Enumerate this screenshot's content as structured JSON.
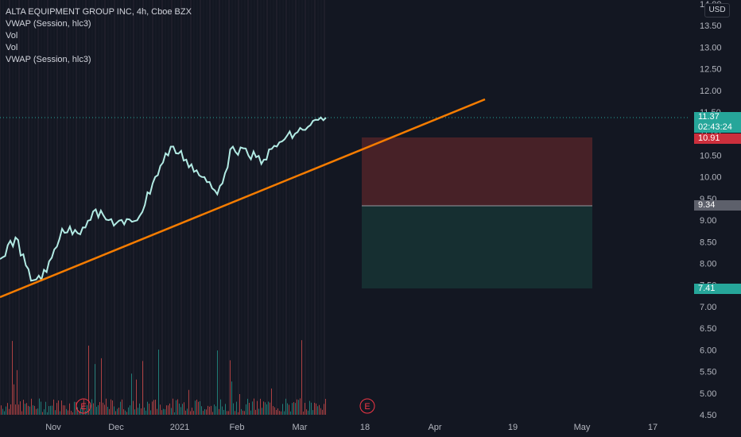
{
  "legend": {
    "title": "ALTA EQUIPMENT GROUP INC, 4h, Cboe BZX",
    "items": [
      "VWAP (Session, hlc3)",
      "Vol",
      "Vol",
      "VWAP (Session, hlc3)"
    ]
  },
  "currency": "USD",
  "price_axis": {
    "ticks": [
      "14.00",
      "13.50",
      "13.00",
      "12.50",
      "12.00",
      "11.50",
      "11.00",
      "10.50",
      "10.00",
      "9.50",
      "9.00",
      "8.50",
      "8.00",
      "7.50",
      "7.00",
      "6.50",
      "6.00",
      "5.50",
      "5.00",
      "4.50"
    ]
  },
  "time_axis": {
    "ticks": [
      "Nov",
      "Dec",
      "2021",
      "Feb",
      "Mar",
      "18",
      "Apr",
      "19",
      "May",
      "17"
    ]
  },
  "events": [
    {
      "label": "E"
    },
    {
      "label": "E"
    }
  ],
  "price_tags": {
    "last_price": "11.37",
    "countdown": "02:43:24",
    "stop": "10.91",
    "entry": "9.34",
    "target": "7.41"
  },
  "colors": {
    "background": "#131722",
    "price_line": "#b2ebe4",
    "trendline": "#f57c00",
    "stop_zone": "#4a2228",
    "target_zone": "#163033",
    "last_price_tag": "#26a69a",
    "stop_tag": "#cc2f3c",
    "entry_tag": "#5d606b",
    "target_tag": "#26a69a"
  },
  "chart_data": {
    "type": "line",
    "title": "ALTA EQUIPMENT GROUP INC, 4h, Cboe BZX",
    "ylim": [
      4.5,
      14.0
    ],
    "x": [
      "Oct-15",
      "Oct-22",
      "Oct-29",
      "Nov-05",
      "Nov-12",
      "Nov-19",
      "Nov-26",
      "Dec-03",
      "Dec-10",
      "Dec-17",
      "Dec-24",
      "Dec-31",
      "Jan-07",
      "Jan-14",
      "Jan-21",
      "Jan-28",
      "Feb-04",
      "Feb-11",
      "Feb-18",
      "Feb-25",
      "Mar-04",
      "Mar-08"
    ],
    "series": [
      {
        "values": [
          8.1,
          8.6,
          7.6,
          7.8,
          8.8,
          8.7,
          9.2,
          9.0,
          8.9,
          9.1,
          10.0,
          10.7,
          10.4,
          10.0,
          9.6,
          10.7,
          10.5,
          10.4,
          10.8,
          11.0,
          11.2,
          11.37
        ]
      }
    ],
    "trendline": {
      "start": [
        "Oct-15",
        7.2
      ],
      "end": [
        "Mar-20",
        11.8
      ]
    },
    "position": {
      "stop": 10.91,
      "entry": 9.34,
      "target": 7.41
    }
  }
}
